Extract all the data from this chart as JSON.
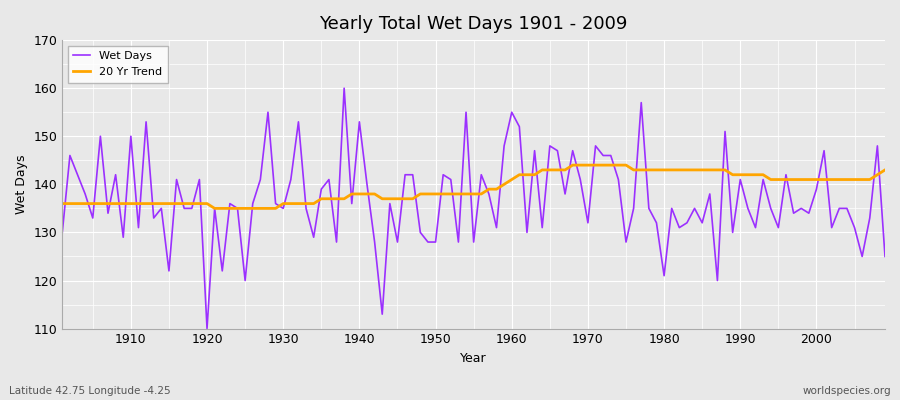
{
  "title": "Yearly Total Wet Days 1901 - 2009",
  "xlabel": "Year",
  "ylabel": "Wet Days",
  "subtitle": "Latitude 42.75 Longitude -4.25",
  "watermark": "worldspecies.org",
  "ylim": [
    110,
    170
  ],
  "yticks": [
    110,
    120,
    130,
    140,
    150,
    160,
    170
  ],
  "xlim": [
    1901,
    2009
  ],
  "wet_days_color": "#9B30FF",
  "trend_color": "#FFA500",
  "bg_color": "#E8E8E8",
  "years": [
    1901,
    1902,
    1903,
    1904,
    1905,
    1906,
    1907,
    1908,
    1909,
    1910,
    1911,
    1912,
    1913,
    1914,
    1915,
    1916,
    1917,
    1918,
    1919,
    1920,
    1921,
    1922,
    1923,
    1924,
    1925,
    1926,
    1927,
    1928,
    1929,
    1930,
    1931,
    1932,
    1933,
    1934,
    1935,
    1936,
    1937,
    1938,
    1939,
    1940,
    1941,
    1942,
    1943,
    1944,
    1945,
    1946,
    1947,
    1948,
    1949,
    1950,
    1951,
    1952,
    1953,
    1954,
    1955,
    1956,
    1957,
    1958,
    1959,
    1960,
    1961,
    1962,
    1963,
    1964,
    1965,
    1966,
    1967,
    1968,
    1969,
    1970,
    1971,
    1972,
    1973,
    1974,
    1975,
    1976,
    1977,
    1978,
    1979,
    1980,
    1981,
    1982,
    1983,
    1984,
    1985,
    1986,
    1987,
    1988,
    1989,
    1990,
    1991,
    1992,
    1993,
    1994,
    1995,
    1996,
    1997,
    1998,
    1999,
    2000,
    2001,
    2002,
    2003,
    2004,
    2005,
    2006,
    2007,
    2008,
    2009
  ],
  "wet_days": [
    130,
    146,
    142,
    138,
    133,
    150,
    134,
    142,
    129,
    150,
    131,
    153,
    133,
    135,
    122,
    141,
    135,
    135,
    141,
    110,
    135,
    122,
    136,
    135,
    120,
    136,
    141,
    155,
    136,
    135,
    141,
    153,
    135,
    129,
    139,
    141,
    128,
    160,
    136,
    153,
    140,
    128,
    113,
    136,
    128,
    142,
    142,
    130,
    128,
    128,
    142,
    141,
    128,
    155,
    128,
    142,
    138,
    131,
    148,
    155,
    152,
    130,
    147,
    131,
    148,
    147,
    138,
    147,
    141,
    132,
    148,
    146,
    146,
    141,
    128,
    135,
    157,
    135,
    132,
    121,
    135,
    131,
    132,
    135,
    132,
    138,
    120,
    151,
    130,
    141,
    135,
    131,
    141,
    135,
    131,
    142,
    134,
    135,
    134,
    139,
    147,
    131,
    135,
    135,
    131,
    125,
    133,
    148,
    125
  ],
  "trend": [
    136,
    136,
    136,
    136,
    136,
    136,
    136,
    136,
    136,
    136,
    136,
    136,
    136,
    136,
    136,
    136,
    136,
    136,
    136,
    136,
    135,
    135,
    135,
    135,
    135,
    135,
    135,
    135,
    135,
    136,
    136,
    136,
    136,
    136,
    137,
    137,
    137,
    137,
    138,
    138,
    138,
    138,
    137,
    137,
    137,
    137,
    137,
    138,
    138,
    138,
    138,
    138,
    138,
    138,
    138,
    138,
    139,
    139,
    140,
    141,
    142,
    142,
    142,
    143,
    143,
    143,
    143,
    144,
    144,
    144,
    144,
    144,
    144,
    144,
    144,
    143,
    143,
    143,
    143,
    143,
    143,
    143,
    143,
    143,
    143,
    143,
    143,
    143,
    142,
    142,
    142,
    142,
    142,
    141,
    141,
    141,
    141,
    141,
    141,
    141,
    141,
    141,
    141,
    141,
    141,
    141,
    141,
    142,
    143
  ]
}
